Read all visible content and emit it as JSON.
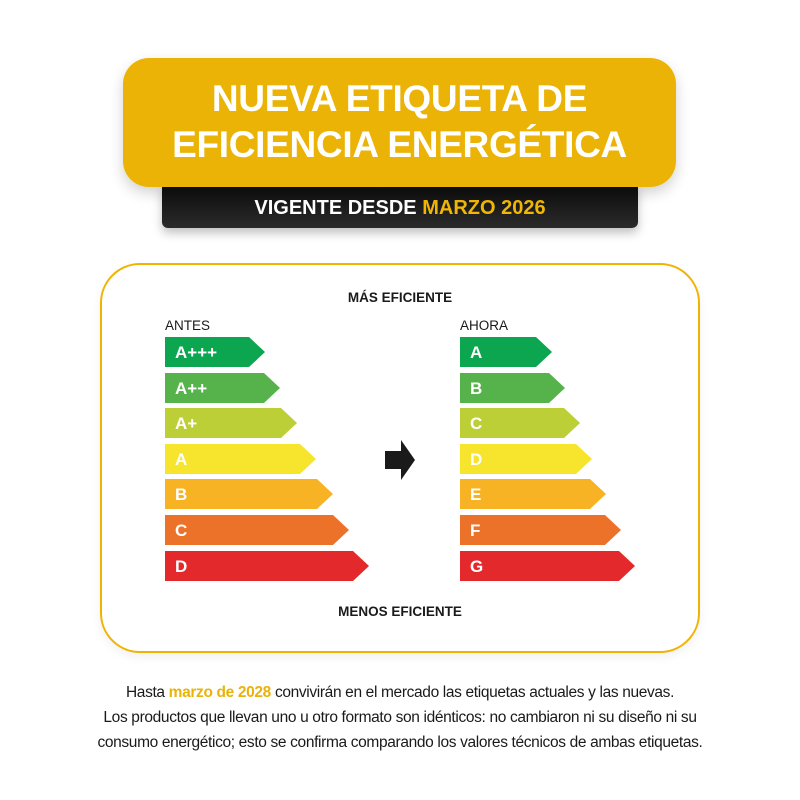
{
  "header": {
    "title_line1": "NUEVA ETIQUETA DE",
    "title_line2": "EFICIENCIA ENERGÉTICA",
    "subtitle_prefix": "VIGENTE DESDE",
    "subtitle_highlight": "MARZO 2026"
  },
  "diagram": {
    "top_label": "MÁS EFICIENTE",
    "bottom_label": "MENOS EFICIENTE",
    "before": {
      "label": "ANTES",
      "classes": [
        "A+++",
        "A++",
        "A+",
        "A",
        "B",
        "C",
        "D"
      ]
    },
    "after": {
      "label": "AHORA",
      "classes": [
        "A",
        "B",
        "C",
        "D",
        "E",
        "F",
        "G"
      ]
    },
    "scale_colors": [
      "#0ba64f",
      "#56b34b",
      "#bccf36",
      "#f7e52d",
      "#f7b323",
      "#ec722a",
      "#e3292b"
    ],
    "arrow_icon": "right-arrow-icon"
  },
  "note": {
    "line1_prefix": "Hasta",
    "line1_highlight": "marzo de 2028",
    "line1_suffix": "convivirán en el mercado las etiquetas actuales y las nuevas.",
    "line2": "Los productos que llevan uno u otro formato son idénticos: no cambiaron ni su diseño ni su",
    "line3": "consumo energético; esto se confirma comparando los valores técnicos de ambas etiquetas."
  },
  "colors": {
    "accent": "#ebb305",
    "dark": "#111111"
  }
}
